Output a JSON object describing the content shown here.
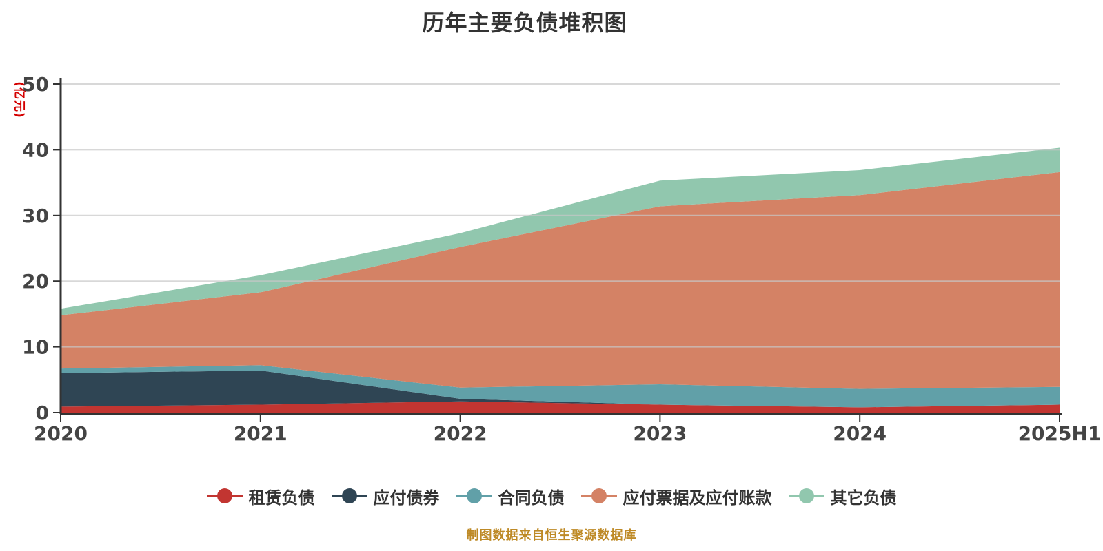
{
  "page": {
    "background": "#ffffff"
  },
  "chart_data": {
    "type": "area",
    "stacked": true,
    "title": "历年主要负债堆积图",
    "ylabel": "(亿元)",
    "xlabel": "",
    "categories": [
      "2020",
      "2021",
      "2022",
      "2023",
      "2024",
      "2025H1"
    ],
    "series": [
      {
        "name": "租赁负债",
        "color": "#c23531",
        "values": [
          0.9,
          1.2,
          1.7,
          1.2,
          0.8,
          1.2
        ]
      },
      {
        "name": "应付债券",
        "color": "#2f4554",
        "values": [
          5.1,
          5.2,
          0.4,
          0.0,
          0.0,
          0.0
        ]
      },
      {
        "name": "合同负债",
        "color": "#61a0a8",
        "values": [
          0.7,
          0.8,
          1.7,
          3.1,
          2.8,
          2.7
        ]
      },
      {
        "name": "应付票据及应付账款",
        "color": "#d48265",
        "values": [
          8.1,
          11.1,
          21.4,
          27.1,
          29.5,
          32.7
        ]
      },
      {
        "name": "其它负债",
        "color": "#91c7ae",
        "values": [
          1.0,
          2.6,
          2.1,
          3.9,
          3.8,
          3.7
        ]
      }
    ],
    "stack_totals": [
      15.8,
      20.9,
      27.3,
      35.3,
      36.9,
      40.3
    ],
    "ylim": [
      0,
      50
    ],
    "y_ticks": [
      0,
      10,
      20,
      30,
      40,
      50
    ],
    "grid": true,
    "legend_position": "bottom"
  },
  "footer": {
    "source_note": "制图数据来自恒生聚源数据库"
  },
  "colors": {
    "axis": "#333333",
    "tick_label": "#444444",
    "grid": "#c8c8c8",
    "title": "#333333",
    "ylabel_red": "#d40000",
    "footer_orange": "#be8a26"
  }
}
